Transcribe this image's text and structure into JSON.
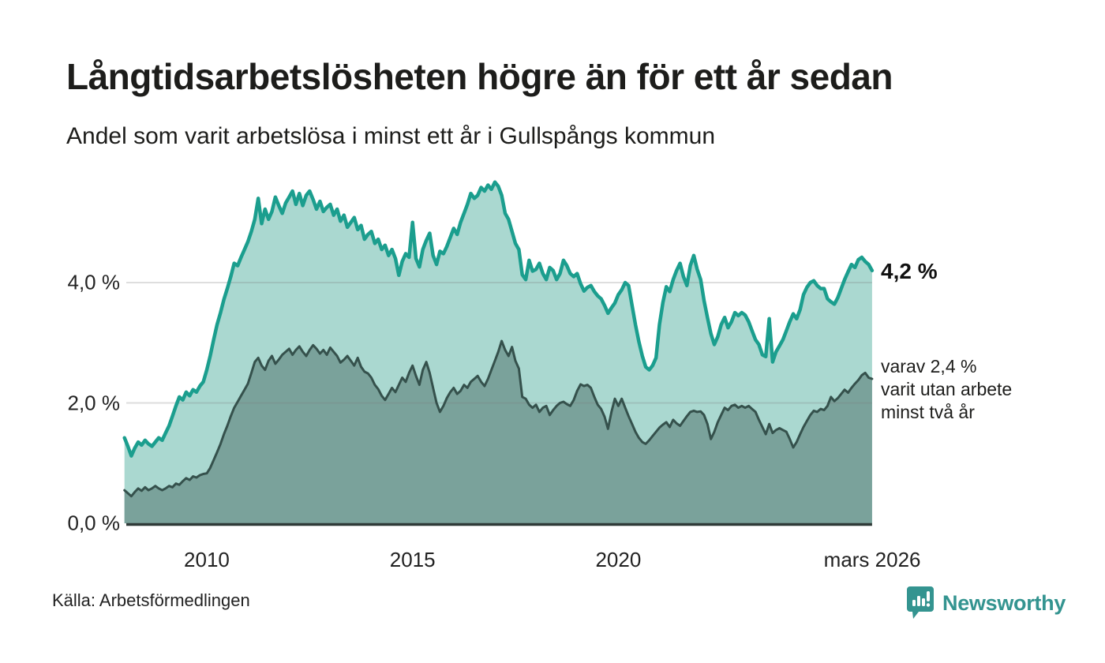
{
  "header": {
    "title": "Långtidsarbetslösheten högre än för ett år sedan",
    "subtitle": "Andel som varit arbetslösa i minst ett år i Gullspångs kommun"
  },
  "annotations": {
    "end_value_label": "4,2 %",
    "sub_label_lines": [
      "varav 2,4 %",
      "varit utan arbete",
      "minst två år"
    ]
  },
  "footer": {
    "source": "Källa: Arbetsförmedlingen",
    "brand": "Newsworthy"
  },
  "colors": {
    "total_line": "#1b9e8e",
    "total_fill": "#aad8d0",
    "two_year_line": "#35514c",
    "two_year_fill": "#7aa29b",
    "gridline": "#7d7d7d",
    "baseline": "#2f3a38",
    "brand_teal": "#349490"
  },
  "chart_data": {
    "type": "area",
    "title": "Långtidsarbetslösheten högre än för ett år sedan",
    "subtitle": "Andel som varit arbetslösa i minst ett år i Gullspångs kommun",
    "unit": "%",
    "frequency": "monthly",
    "x_start": "2008-01",
    "x_end": "2026-03",
    "ylim": [
      0,
      5.8
    ],
    "grid": true,
    "y_ticks": [
      {
        "value": 0,
        "label": "0,0 %"
      },
      {
        "value": 2,
        "label": "2,0 %"
      },
      {
        "value": 4,
        "label": "4,0 %"
      }
    ],
    "x_ticks": [
      {
        "year": 2010,
        "label": "2010"
      },
      {
        "year": 2015,
        "label": "2015"
      },
      {
        "year": 2020,
        "label": "2020"
      },
      {
        "year": 2026.17,
        "label": "mars 2026"
      }
    ],
    "series": [
      {
        "name": "Arbetslösa minst ett år (totalt)",
        "end_value": 4.2,
        "end_label": "4,2 %",
        "values": [
          1.42,
          1.28,
          1.12,
          1.25,
          1.35,
          1.3,
          1.38,
          1.32,
          1.28,
          1.35,
          1.42,
          1.38,
          1.5,
          1.62,
          1.78,
          1.95,
          2.1,
          2.05,
          2.18,
          2.12,
          2.22,
          2.18,
          2.28,
          2.35,
          2.55,
          2.78,
          3.05,
          3.3,
          3.5,
          3.72,
          3.9,
          4.1,
          4.32,
          4.28,
          4.42,
          4.55,
          4.68,
          4.85,
          5.05,
          5.4,
          4.98,
          5.22,
          5.05,
          5.18,
          5.42,
          5.28,
          5.15,
          5.32,
          5.42,
          5.52,
          5.3,
          5.48,
          5.28,
          5.45,
          5.52,
          5.38,
          5.22,
          5.35,
          5.18,
          5.25,
          5.3,
          5.12,
          5.22,
          5.02,
          5.12,
          4.92,
          5.0,
          5.08,
          4.88,
          4.95,
          4.72,
          4.8,
          4.85,
          4.65,
          4.72,
          4.55,
          4.62,
          4.45,
          4.55,
          4.4,
          4.12,
          4.35,
          4.48,
          4.42,
          5.0,
          4.4,
          4.26,
          4.55,
          4.7,
          4.82,
          4.45,
          4.3,
          4.52,
          4.48,
          4.6,
          4.75,
          4.9,
          4.8,
          5.0,
          5.15,
          5.3,
          5.48,
          5.4,
          5.45,
          5.58,
          5.52,
          5.62,
          5.55,
          5.67,
          5.6,
          5.45,
          5.15,
          5.05,
          4.85,
          4.65,
          4.55,
          4.13,
          4.05,
          4.37,
          4.19,
          4.22,
          4.32,
          4.15,
          4.05,
          4.25,
          4.2,
          4.05,
          4.15,
          4.37,
          4.28,
          4.15,
          4.1,
          4.15,
          3.98,
          3.86,
          3.92,
          3.95,
          3.85,
          3.78,
          3.73,
          3.62,
          3.49,
          3.58,
          3.66,
          3.8,
          3.88,
          4.0,
          3.95,
          3.62,
          3.3,
          3.02,
          2.78,
          2.6,
          2.55,
          2.62,
          2.75,
          3.3,
          3.67,
          3.93,
          3.85,
          4.05,
          4.2,
          4.32,
          4.1,
          3.95,
          4.28,
          4.45,
          4.22,
          4.05,
          3.7,
          3.42,
          3.15,
          2.97,
          3.1,
          3.3,
          3.42,
          3.25,
          3.35,
          3.5,
          3.45,
          3.5,
          3.46,
          3.35,
          3.2,
          3.05,
          2.97,
          2.8,
          2.77,
          3.4,
          2.68,
          2.85,
          2.95,
          3.05,
          3.2,
          3.35,
          3.48,
          3.4,
          3.55,
          3.8,
          3.92,
          4.0,
          4.03,
          3.95,
          3.9,
          3.9,
          3.73,
          3.68,
          3.64,
          3.75,
          3.9,
          4.05,
          4.18,
          4.3,
          4.25,
          4.38,
          4.42,
          4.35,
          4.3,
          4.2
        ]
      },
      {
        "name": "Varav utan arbete minst två år",
        "end_value": 2.4,
        "end_label": "varav 2,4 % varit utan arbete minst två år",
        "values": [
          0.55,
          0.5,
          0.45,
          0.52,
          0.58,
          0.54,
          0.6,
          0.55,
          0.58,
          0.62,
          0.58,
          0.55,
          0.58,
          0.62,
          0.6,
          0.66,
          0.64,
          0.7,
          0.75,
          0.72,
          0.78,
          0.76,
          0.8,
          0.82,
          0.83,
          0.92,
          1.05,
          1.18,
          1.32,
          1.48,
          1.62,
          1.78,
          1.92,
          2.02,
          2.12,
          2.22,
          2.32,
          2.5,
          2.68,
          2.75,
          2.62,
          2.55,
          2.7,
          2.78,
          2.65,
          2.72,
          2.8,
          2.85,
          2.9,
          2.8,
          2.88,
          2.94,
          2.85,
          2.78,
          2.88,
          2.96,
          2.9,
          2.82,
          2.88,
          2.8,
          2.92,
          2.85,
          2.78,
          2.67,
          2.72,
          2.78,
          2.7,
          2.62,
          2.75,
          2.6,
          2.52,
          2.49,
          2.42,
          2.3,
          2.23,
          2.12,
          2.05,
          2.15,
          2.25,
          2.18,
          2.3,
          2.42,
          2.35,
          2.5,
          2.62,
          2.45,
          2.3,
          2.55,
          2.68,
          2.5,
          2.25,
          2.0,
          1.85,
          1.95,
          2.08,
          2.18,
          2.25,
          2.15,
          2.2,
          2.3,
          2.25,
          2.35,
          2.4,
          2.45,
          2.35,
          2.28,
          2.4,
          2.55,
          2.7,
          2.85,
          3.03,
          2.88,
          2.78,
          2.93,
          2.7,
          2.57,
          2.1,
          2.07,
          1.97,
          1.92,
          1.97,
          1.85,
          1.92,
          1.95,
          1.8,
          1.88,
          1.95,
          2.0,
          2.02,
          1.98,
          1.95,
          2.05,
          2.2,
          2.31,
          2.28,
          2.3,
          2.25,
          2.1,
          1.97,
          1.9,
          1.77,
          1.57,
          1.85,
          2.07,
          1.95,
          2.07,
          1.92,
          1.78,
          1.65,
          1.52,
          1.42,
          1.35,
          1.32,
          1.38,
          1.45,
          1.52,
          1.59,
          1.64,
          1.68,
          1.6,
          1.72,
          1.66,
          1.62,
          1.7,
          1.78,
          1.85,
          1.87,
          1.85,
          1.86,
          1.8,
          1.65,
          1.4,
          1.52,
          1.68,
          1.8,
          1.92,
          1.88,
          1.95,
          1.97,
          1.92,
          1.95,
          1.92,
          1.95,
          1.9,
          1.85,
          1.72,
          1.6,
          1.48,
          1.65,
          1.5,
          1.55,
          1.58,
          1.55,
          1.52,
          1.4,
          1.26,
          1.35,
          1.48,
          1.6,
          1.7,
          1.8,
          1.87,
          1.85,
          1.9,
          1.88,
          1.95,
          2.1,
          2.03,
          2.08,
          2.15,
          2.22,
          2.17,
          2.25,
          2.32,
          2.38,
          2.46,
          2.5,
          2.42,
          2.4
        ]
      }
    ]
  }
}
